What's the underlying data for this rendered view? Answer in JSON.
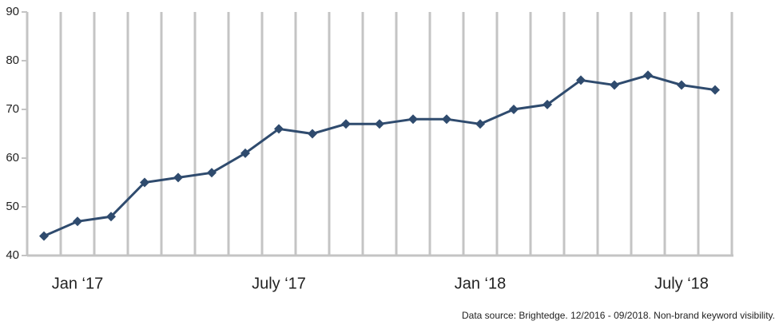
{
  "chart_data": {
    "type": "line",
    "categories": [
      null,
      "Jan ‘17",
      null,
      null,
      null,
      null,
      null,
      "July ‘17",
      null,
      null,
      null,
      null,
      null,
      "Jan ‘18",
      null,
      null,
      null,
      null,
      null,
      "July ‘18",
      null
    ],
    "series": [
      {
        "name": "Non-brand keyword visibility",
        "color": "#2f4b6e",
        "values": [
          44,
          47,
          48,
          55,
          56,
          57,
          61,
          66,
          65,
          67,
          67,
          68,
          68,
          67,
          70,
          71,
          76,
          75,
          77,
          75,
          74
        ]
      }
    ],
    "ylim": [
      40,
      90
    ],
    "yticks": [
      40,
      50,
      60,
      70,
      80,
      90
    ],
    "grid": true,
    "annotation": "Data source: Brightedge. 12/2016 - 09/2018. Non-brand keyword visibility."
  }
}
